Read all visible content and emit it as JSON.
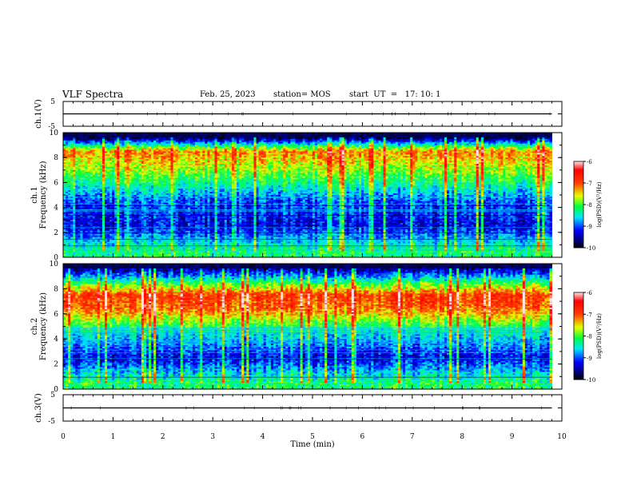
{
  "header": {
    "title": "VLF Spectra",
    "date": "Feb. 25, 2023",
    "station": "station= MOS",
    "start": "start  UT  =   17: 10: 1"
  },
  "colorbar": {
    "label": "log(PSD)(V²/Hz)",
    "ticks": [
      "-6",
      "-7",
      "-8",
      "-9",
      "-10"
    ],
    "colors": [
      "#ffffff",
      "#ff0000",
      "#ffff00",
      "#00ff00",
      "#00ffff",
      "#0000ff",
      "#000080",
      "#000000"
    ]
  },
  "chart_data": [
    {
      "type": "line",
      "panel": "ch1-voltage",
      "ylabel": "ch.1(V)",
      "ylim": [
        -5,
        5
      ],
      "yticks": [
        "5",
        "-5"
      ],
      "xlim": [
        0,
        10
      ],
      "series": [
        {
          "x": [
            0,
            9.8
          ],
          "y": [
            0.0,
            0.0
          ]
        }
      ]
    },
    {
      "type": "heatmap",
      "panel": "ch1-spectrogram",
      "ylabel": "ch.1\nFrequency  (kHz)",
      "ylim": [
        0,
        10
      ],
      "yticks": [
        "0",
        "2",
        "4",
        "6",
        "8",
        "10"
      ],
      "xlim": [
        0,
        10
      ],
      "clim": [
        -10,
        -6
      ],
      "x_extent_min": 9.8,
      "band_profile_kHz": [
        0.5,
        2.5,
        4.5,
        6.5,
        8.5,
        9.6
      ],
      "band_profile_logpsd": [
        -8.2,
        -9.3,
        -9.0,
        -8.0,
        -7.2,
        -9.8
      ]
    },
    {
      "type": "heatmap",
      "panel": "ch2-spectrogram",
      "ylabel": "ch.2\nFrequency  (kHz)",
      "ylim": [
        0,
        10
      ],
      "yticks": [
        "0",
        "2",
        "4",
        "6",
        "8",
        "10"
      ],
      "xlim": [
        0,
        10
      ],
      "clim": [
        -10,
        -6
      ],
      "x_extent_min": 9.8,
      "band_profile_kHz": [
        0.5,
        2.5,
        4.5,
        6.5,
        7.5,
        9.6
      ],
      "band_profile_logpsd": [
        -8.2,
        -9.3,
        -8.5,
        -7.1,
        -6.9,
        -9.6
      ]
    },
    {
      "type": "line",
      "panel": "ch3-voltage",
      "ylabel": "ch.3(V)",
      "ylim": [
        -5,
        5
      ],
      "yticks": [
        "5",
        "-5"
      ],
      "xlim": [
        0,
        10
      ],
      "series": [
        {
          "x": [
            0,
            9.8
          ],
          "y": [
            0.0,
            0.0
          ]
        }
      ]
    }
  ],
  "xaxis": {
    "label": "Time  (min)",
    "ticks": [
      "0",
      "1",
      "2",
      "3",
      "4",
      "5",
      "6",
      "7",
      "8",
      "9",
      "10"
    ]
  }
}
